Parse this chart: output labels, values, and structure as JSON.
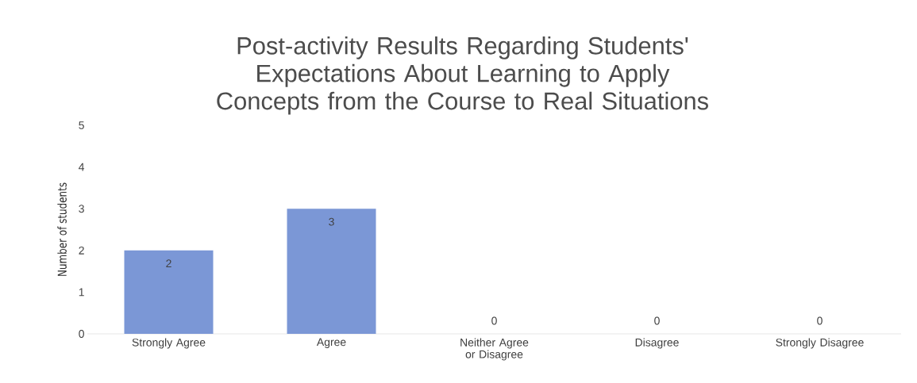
{
  "chart_data": {
    "type": "bar",
    "title": "Post-activity Results Regarding Students' Expectations About Learning to Apply Concepts from the Course to Real Situations",
    "categories": [
      "Strongly Agree",
      "Agree",
      "Neither Agree or Disagree",
      "Disagree",
      "Strongly Disagree"
    ],
    "values": [
      2,
      3,
      0,
      0,
      0
    ],
    "color": "#7b97d6",
    "ylabel": "Number of students",
    "ylim": [
      0,
      5
    ],
    "yticks": [
      0,
      1,
      2,
      3,
      4,
      5
    ],
    "data_labels": true
  }
}
